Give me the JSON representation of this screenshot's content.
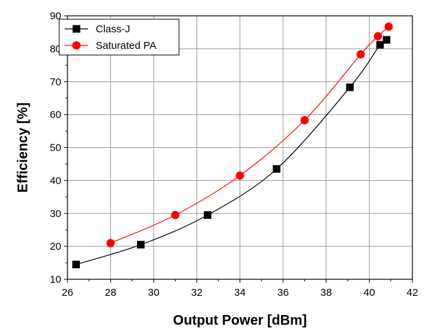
{
  "chart_data": {
    "type": "line",
    "title": "",
    "xlabel": "Output Power [dBm]",
    "ylabel": "Efficiency [%]",
    "xlim": [
      26,
      42
    ],
    "ylim": [
      10,
      90
    ],
    "xticks": [
      26,
      28,
      30,
      32,
      34,
      36,
      38,
      40,
      42
    ],
    "yticks": [
      10,
      20,
      30,
      40,
      50,
      60,
      70,
      80,
      90
    ],
    "grid": true,
    "legend_position": "top-left",
    "series": [
      {
        "name": "Class-J",
        "color": "#000000",
        "marker": "square",
        "x": [
          26.4,
          29.4,
          32.5,
          35.7,
          39.1,
          40.5,
          40.8
        ],
        "y": [
          14.5,
          20.5,
          29.5,
          43.5,
          68.3,
          81.2,
          82.7
        ]
      },
      {
        "name": "Saturated PA",
        "color": "#ff0000",
        "marker": "circle",
        "x": [
          28.0,
          31.0,
          34.0,
          37.0,
          39.6,
          40.4,
          40.9
        ],
        "y": [
          21.0,
          29.5,
          41.5,
          58.3,
          78.3,
          83.8,
          86.7
        ]
      }
    ]
  }
}
